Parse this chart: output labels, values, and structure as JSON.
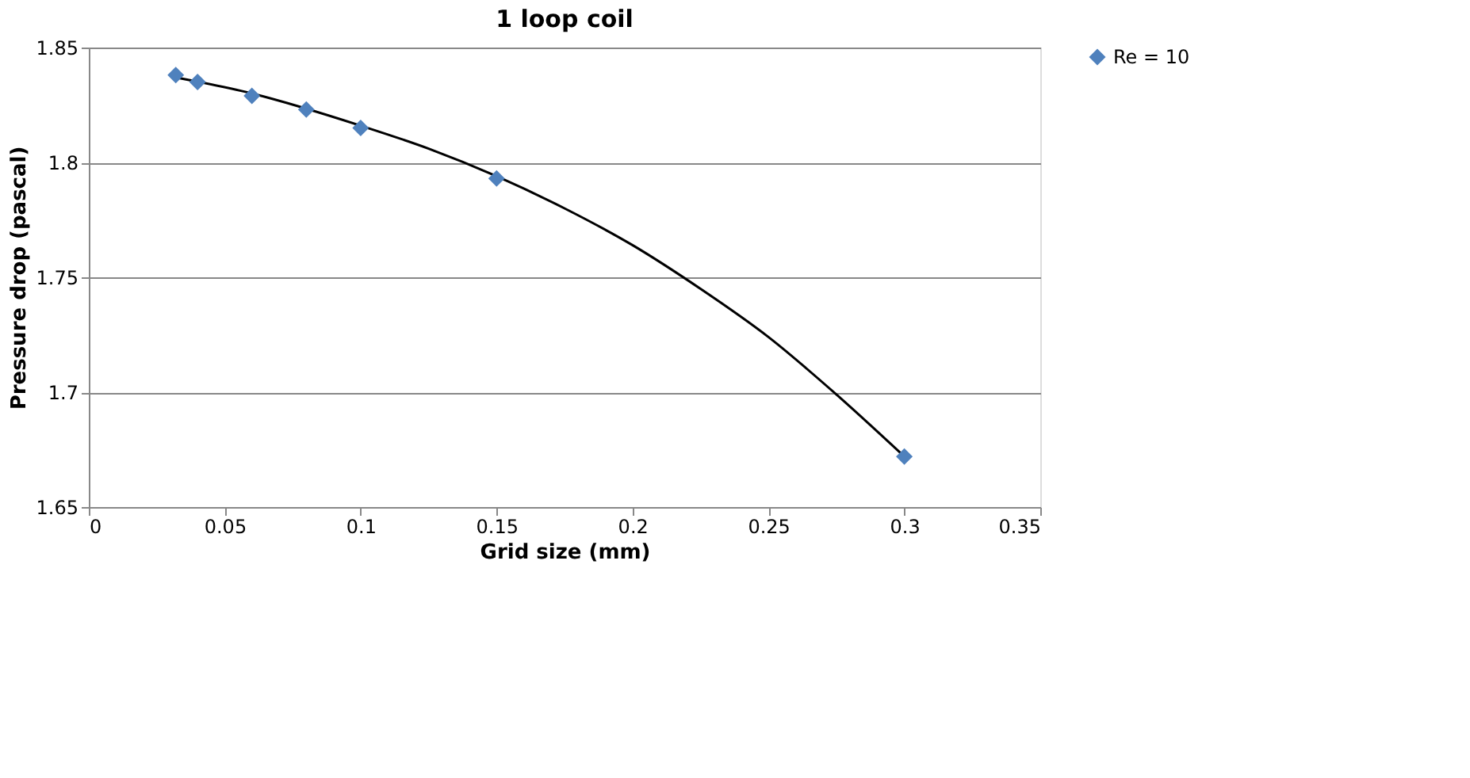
{
  "chart_data": {
    "type": "scatter",
    "title": "1 loop coil",
    "xlabel": "Grid size (mm)",
    "ylabel": "Pressure drop (pascal)",
    "xlim": [
      0,
      0.35
    ],
    "xticks": [
      0,
      0.05,
      0.1,
      0.15,
      0.2,
      0.25,
      0.3,
      0.35
    ],
    "ylim": [
      1.65,
      1.85
    ],
    "yticks": [
      1.65,
      1.7,
      1.75,
      1.8,
      1.85
    ],
    "grid": "y",
    "legend": "right",
    "marker": "diamond",
    "series": [
      {
        "name": "Re = 10",
        "color": "#4f81bd",
        "x": [
          0.032,
          0.04,
          0.06,
          0.08,
          0.1,
          0.15,
          0.3
        ],
        "values": [
          1.838,
          1.835,
          1.829,
          1.823,
          1.815,
          1.793,
          1.672
        ]
      },
      {
        "type": "line",
        "color": "#000000",
        "line_style": "solid",
        "marker": "none",
        "x": [
          0.032,
          0.06,
          0.1,
          0.125,
          0.15,
          0.175,
          0.2,
          0.225,
          0.25,
          0.275,
          0.3
        ],
        "values": [
          1.837,
          1.83,
          1.816,
          1.806,
          1.794,
          1.78,
          1.764,
          1.745,
          1.724,
          1.699,
          1.672
        ]
      }
    ]
  }
}
